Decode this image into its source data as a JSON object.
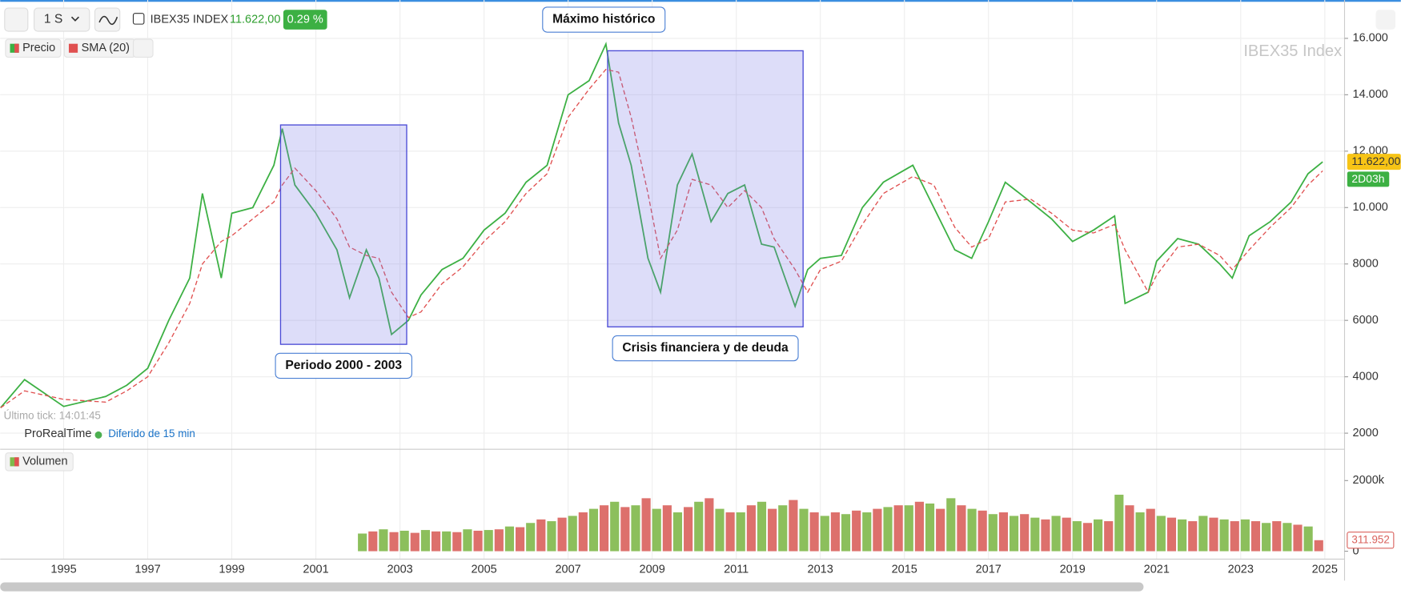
{
  "ui": {
    "timeframe": "1 S",
    "symbol": "IBEX35 INDEX",
    "price": "11.622,00",
    "change": "0.29 %",
    "watermark": "IBEX35 Index",
    "last_tick": "Último tick: 14:01:45",
    "brand": "ProRealTime",
    "delay": "Diferido de 15 min"
  },
  "chart_data": [
    {
      "type": "line",
      "xlim": [
        1993.49,
        2025.47
      ],
      "ylim": [
        1460,
        17360
      ],
      "yticks": [
        {
          "value": 16000,
          "label": "16.000"
        },
        {
          "value": 14000,
          "label": "14.000"
        },
        {
          "value": 12000,
          "label": "12.000"
        },
        {
          "value": 10000,
          "label": "10.000"
        },
        8000,
        6000,
        4000,
        2000
      ],
      "grid": true,
      "x": [
        1993.5,
        1994.07,
        1995.0,
        1996.0,
        1996.5,
        1997.0,
        1997.5,
        1998.0,
        1998.3,
        1998.75,
        1999.0,
        1999.5,
        2000.0,
        2000.2,
        2000.5,
        2001.0,
        2001.5,
        2001.8,
        2002.2,
        2002.5,
        2002.8,
        2003.2,
        2003.5,
        2004.0,
        2004.5,
        2005.0,
        2005.5,
        2006.0,
        2006.5,
        2007.0,
        2007.5,
        2007.9,
        2008.2,
        2008.5,
        2008.9,
        2009.2,
        2009.6,
        2009.95,
        2010.4,
        2010.8,
        2011.2,
        2011.6,
        2011.9,
        2012.4,
        2012.7,
        2013.0,
        2013.5,
        2014.0,
        2014.5,
        2015.2,
        2015.7,
        2016.2,
        2016.6,
        2017.0,
        2017.4,
        2018.0,
        2018.5,
        2019.0,
        2019.5,
        2020.0,
        2020.25,
        2020.8,
        2021.0,
        2021.5,
        2022.0,
        2022.5,
        2022.8,
        2023.2,
        2023.7,
        2024.2,
        2024.6,
        2024.95
      ],
      "series": [
        {
          "name": "Precio",
          "color": "#3cb043",
          "values": [
            2900,
            3900,
            2950,
            3300,
            3700,
            4300,
            6000,
            7500,
            10500,
            7500,
            9800,
            10000,
            11500,
            12800,
            10800,
            9800,
            8500,
            6800,
            8500,
            7500,
            5500,
            6000,
            6900,
            7800,
            8200,
            9200,
            9800,
            10900,
            11500,
            14000,
            14500,
            15800,
            13000,
            11500,
            8200,
            7000,
            10800,
            11900,
            9500,
            10500,
            10800,
            8700,
            8600,
            6500,
            7800,
            8200,
            8300,
            10000,
            10900,
            11500,
            10000,
            8500,
            8200,
            9500,
            10900,
            10200,
            9600,
            8800,
            9200,
            9700,
            6600,
            7000,
            8100,
            8900,
            8700,
            8000,
            7500,
            9000,
            9500,
            10200,
            11200,
            11622
          ]
        },
        {
          "name": "SMA (20)",
          "color": "#e05050",
          "dashed": true,
          "values": [
            2900,
            3500,
            3200,
            3100,
            3500,
            4000,
            5200,
            6600,
            8000,
            8800,
            9000,
            9600,
            10200,
            10800,
            11400,
            10600,
            9600,
            8600,
            8300,
            8200,
            7000,
            6100,
            6300,
            7300,
            7900,
            8800,
            9500,
            10500,
            11200,
            13200,
            14200,
            14900,
            14800,
            13200,
            10500,
            8200,
            9200,
            11000,
            10800,
            10000,
            10600,
            10000,
            8900,
            7800,
            7000,
            7800,
            8100,
            9400,
            10500,
            11100,
            10800,
            9300,
            8600,
            8900,
            10200,
            10300,
            9800,
            9200,
            9100,
            9400,
            8500,
            7000,
            7600,
            8600,
            8700,
            8300,
            7800,
            8500,
            9300,
            10000,
            10800,
            11300
          ]
        }
      ],
      "current": {
        "value": 11622,
        "label": "11.622,00",
        "timer": "2D03h"
      },
      "annotations": [
        {
          "text": "Máximo histórico",
          "x": 2007.85,
          "y": 15900
        }
      ],
      "regions": [
        {
          "text": "Periodo 2000 - 2003",
          "x_range": [
            2000.16,
            2003.16
          ],
          "y_range": [
            5150,
            12930
          ]
        },
        {
          "text": "Crisis financiera y de deuda",
          "x_range": [
            2007.94,
            2012.59
          ],
          "y_range": [
            5770,
            15560
          ]
        }
      ]
    },
    {
      "type": "bar",
      "xlim": [
        1993.49,
        2025.47
      ],
      "ylim": [
        -200000,
        2835000
      ],
      "xticks": [
        1995,
        1997,
        1999,
        2001,
        2003,
        2005,
        2007,
        2009,
        2011,
        2013,
        2015,
        2017,
        2019,
        2021,
        2023,
        2025
      ],
      "yticks": [
        {
          "value": 2000000,
          "label": "2000k"
        },
        0
      ],
      "x": [
        2002,
        2002.25,
        2002.5,
        2002.75,
        2003,
        2003.25,
        2003.5,
        2003.75,
        2004,
        2004.25,
        2004.5,
        2004.75,
        2005,
        2005.25,
        2005.5,
        2005.75,
        2006,
        2006.25,
        2006.5,
        2006.75,
        2007,
        2007.25,
        2007.5,
        2007.75,
        2008,
        2008.25,
        2008.5,
        2008.75,
        2009,
        2009.25,
        2009.5,
        2009.75,
        2010,
        2010.25,
        2010.5,
        2010.75,
        2011,
        2011.25,
        2011.5,
        2011.75,
        2012,
        2012.25,
        2012.5,
        2012.75,
        2013,
        2013.25,
        2013.5,
        2013.75,
        2014,
        2014.25,
        2014.5,
        2014.75,
        2015,
        2015.25,
        2015.5,
        2015.75,
        2016,
        2016.25,
        2016.5,
        2016.75,
        2017,
        2017.25,
        2017.5,
        2017.75,
        2018,
        2018.25,
        2018.5,
        2018.75,
        2019,
        2019.25,
        2019.5,
        2019.75,
        2020,
        2020.25,
        2020.5,
        2020.75,
        2021,
        2021.25,
        2021.5,
        2021.75,
        2022,
        2022.25,
        2022.5,
        2022.75,
        2023,
        2023.25,
        2023.5,
        2023.75,
        2024,
        2024.25,
        2024.5,
        2024.75
      ],
      "series": [
        {
          "name": "Volumen",
          "color": "#7fb84a",
          "values": [
            500000,
            560000,
            620000,
            540000,
            580000,
            520000,
            600000,
            560000,
            560000,
            540000,
            620000,
            580000,
            600000,
            620000,
            700000,
            680000,
            800000,
            900000,
            850000,
            950000,
            1000000,
            1100000,
            1200000,
            1300000,
            1400000,
            1250000,
            1300000,
            1500000,
            1200000,
            1300000,
            1100000,
            1250000,
            1400000,
            1500000,
            1200000,
            1100000,
            1100000,
            1300000,
            1400000,
            1200000,
            1300000,
            1450000,
            1200000,
            1100000,
            1000000,
            1100000,
            1050000,
            1150000,
            1100000,
            1200000,
            1250000,
            1300000,
            1300000,
            1400000,
            1350000,
            1200000,
            1500000,
            1300000,
            1200000,
            1150000,
            1050000,
            1100000,
            1000000,
            1050000,
            950000,
            900000,
            1000000,
            950000,
            850000,
            800000,
            900000,
            850000,
            1600000,
            1300000,
            1100000,
            1200000,
            1000000,
            950000,
            900000,
            850000,
            1000000,
            950000,
            900000,
            850000,
            900000,
            850000,
            800000,
            850000,
            800000,
            750000,
            700000,
            311952
          ]
        }
      ],
      "current": {
        "value": 311952,
        "label": "311.952"
      }
    }
  ]
}
